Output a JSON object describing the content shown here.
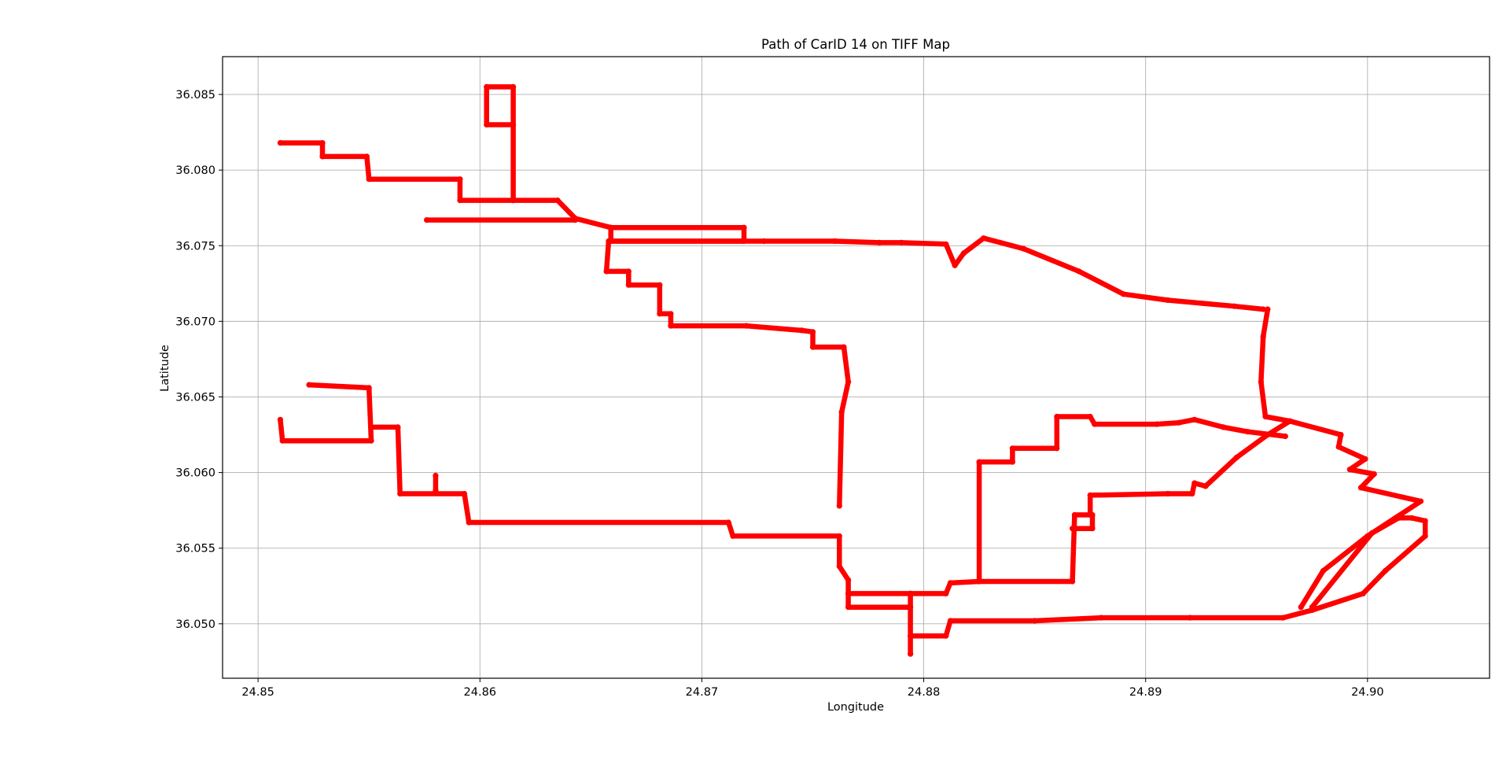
{
  "chart_data": {
    "type": "scatter",
    "title": "Path of CarID 14 on TIFF Map",
    "xlabel": "Longitude",
    "ylabel": "Latitude",
    "xlim": [
      24.8484,
      24.9055
    ],
    "ylim": [
      36.0464,
      36.0875
    ],
    "xticks": [
      24.85,
      24.86,
      24.87,
      24.88,
      24.89,
      24.9
    ],
    "xtick_labels": [
      "24.85",
      "24.86",
      "24.87",
      "24.88",
      "24.89",
      "24.90"
    ],
    "yticks": [
      36.05,
      36.055,
      36.06,
      36.065,
      36.07,
      36.075,
      36.08,
      36.085
    ],
    "ytick_labels": [
      "36.050",
      "36.055",
      "36.060",
      "36.065",
      "36.070",
      "36.075",
      "36.080",
      "36.085"
    ],
    "grid": true,
    "color": "#ff0000",
    "segments": [
      [
        [
          24.851,
          36.0818
        ],
        [
          24.8529,
          36.0818
        ],
        [
          24.8529,
          36.0809
        ],
        [
          24.8549,
          36.0809
        ],
        [
          24.855,
          36.0794
        ],
        [
          24.8591,
          36.0794
        ],
        [
          24.8591,
          36.078
        ],
        [
          24.8615,
          36.078
        ],
        [
          24.8615,
          36.0855
        ],
        [
          24.8603,
          36.0855
        ],
        [
          24.8603,
          36.083
        ],
        [
          24.8615,
          36.083
        ]
      ],
      [
        [
          24.8615,
          36.078
        ],
        [
          24.8635,
          36.078
        ],
        [
          24.8643,
          36.0768
        ],
        [
          24.8659,
          36.0762
        ],
        [
          24.8719,
          36.0762
        ],
        [
          24.8719,
          36.0753
        ],
        [
          24.8659,
          36.0753
        ],
        [
          24.8659,
          36.0762
        ]
      ],
      [
        [
          24.8576,
          36.0767
        ],
        [
          24.8643,
          36.0767
        ]
      ],
      [
        [
          24.8659,
          36.0753
        ],
        [
          24.8728,
          36.0753
        ],
        [
          24.876,
          36.0753
        ],
        [
          24.878,
          36.0752
        ],
        [
          24.879,
          36.0752
        ],
        [
          24.881,
          36.0751
        ],
        [
          24.8814,
          36.0737
        ],
        [
          24.8818,
          36.0745
        ],
        [
          24.8827,
          36.0755
        ],
        [
          24.8845,
          36.0748
        ],
        [
          24.887,
          36.0733
        ],
        [
          24.889,
          36.0718
        ],
        [
          24.891,
          36.0714
        ],
        [
          24.894,
          36.071
        ],
        [
          24.8953,
          36.0708
        ]
      ],
      [
        [
          24.8658,
          36.0753
        ],
        [
          24.8657,
          36.0733
        ],
        [
          24.8667,
          36.0733
        ],
        [
          24.8667,
          36.0724
        ],
        [
          24.8681,
          36.0724
        ],
        [
          24.8681,
          36.0705
        ],
        [
          24.8686,
          36.0705
        ],
        [
          24.8686,
          36.0697
        ],
        [
          24.872,
          36.0697
        ],
        [
          24.8745,
          36.0694
        ],
        [
          24.875,
          36.0693
        ],
        [
          24.875,
          36.0683
        ],
        [
          24.8764,
          36.0683
        ],
        [
          24.8766,
          36.066
        ],
        [
          24.8763,
          36.064
        ],
        [
          24.8762,
          36.0578
        ]
      ],
      [
        [
          24.8523,
          36.0658
        ],
        [
          24.855,
          36.0656
        ],
        [
          24.8551,
          36.0621
        ],
        [
          24.8511,
          36.0621
        ],
        [
          24.851,
          36.0635
        ]
      ],
      [
        [
          24.8551,
          36.063
        ],
        [
          24.8563,
          36.063
        ],
        [
          24.8564,
          36.0586
        ],
        [
          24.8593,
          36.0586
        ],
        [
          24.8595,
          36.0567
        ],
        [
          24.8712,
          36.0567
        ],
        [
          24.8714,
          36.0558
        ],
        [
          24.8762,
          36.0558
        ],
        [
          24.8762,
          36.0538
        ],
        [
          24.8766,
          36.0529
        ],
        [
          24.8766,
          36.052
        ],
        [
          24.8794,
          36.052
        ],
        [
          24.8794,
          36.048
        ]
      ],
      [
        [
          24.858,
          36.0598
        ],
        [
          24.858,
          36.0588
        ]
      ],
      [
        [
          24.8766,
          36.052
        ],
        [
          24.8766,
          36.0511
        ],
        [
          24.8794,
          36.0511
        ]
      ],
      [
        [
          24.8794,
          36.052
        ],
        [
          24.881,
          36.052
        ],
        [
          24.8812,
          36.0527
        ],
        [
          24.8825,
          36.0528
        ],
        [
          24.8867,
          36.0528
        ],
        [
          24.8868,
          36.0572
        ],
        [
          24.8875,
          36.0572
        ],
        [
          24.8875,
          36.0585
        ],
        [
          24.891,
          36.0586
        ],
        [
          24.8921,
          36.0586
        ],
        [
          24.8922,
          36.0593
        ],
        [
          24.8927,
          36.0591
        ],
        [
          24.8941,
          36.061
        ],
        [
          24.8955,
          36.0625
        ],
        [
          24.8965,
          36.0634
        ]
      ],
      [
        [
          24.8825,
          36.0528
        ],
        [
          24.8825,
          36.0607
        ],
        [
          24.884,
          36.0607
        ],
        [
          24.884,
          36.0616
        ],
        [
          24.886,
          36.0616
        ],
        [
          24.886,
          36.0637
        ],
        [
          24.8875,
          36.0637
        ],
        [
          24.8877,
          36.0632
        ],
        [
          24.8905,
          36.0632
        ],
        [
          24.8915,
          36.0633
        ],
        [
          24.8922,
          36.0635
        ],
        [
          24.8935,
          36.063
        ],
        [
          24.8946,
          36.0627
        ],
        [
          24.8963,
          36.0624
        ]
      ],
      [
        [
          24.8955,
          36.0708
        ],
        [
          24.8953,
          36.069
        ],
        [
          24.8952,
          36.066
        ],
        [
          24.8954,
          36.0637
        ],
        [
          24.8965,
          36.0634
        ],
        [
          24.8988,
          36.0625
        ],
        [
          24.8987,
          36.0617
        ],
        [
          24.8999,
          36.0609
        ],
        [
          24.8992,
          36.0602
        ],
        [
          24.9003,
          36.0599
        ],
        [
          24.8997,
          36.059
        ],
        [
          24.9024,
          36.0581
        ],
        [
          24.9,
          36.0558
        ],
        [
          24.898,
          36.0535
        ],
        [
          24.897,
          36.0511
        ]
      ],
      [
        [
          24.8794,
          36.0492
        ],
        [
          24.881,
          36.0492
        ],
        [
          24.8812,
          36.0502
        ],
        [
          24.885,
          36.0502
        ],
        [
          24.888,
          36.0504
        ],
        [
          24.892,
          36.0504
        ],
        [
          24.8962,
          36.0504
        ],
        [
          24.8975,
          36.0509
        ],
        [
          24.8998,
          36.052
        ],
        [
          24.9008,
          36.0535
        ],
        [
          24.9026,
          36.0558
        ],
        [
          24.9026,
          36.0568
        ],
        [
          24.902,
          36.057
        ],
        [
          24.9014,
          36.057
        ],
        [
          24.9002,
          36.056
        ],
        [
          24.8975,
          36.0511
        ]
      ],
      [
        [
          24.8867,
          36.0563
        ],
        [
          24.8876,
          36.0563
        ],
        [
          24.8876,
          36.0572
        ]
      ]
    ]
  }
}
